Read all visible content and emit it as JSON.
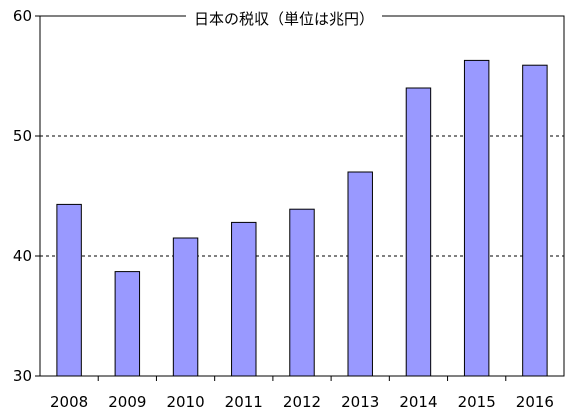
{
  "chart_data": {
    "type": "bar",
    "title": "日本の税収（単位は兆円）",
    "xlabel": "",
    "ylabel": "",
    "categories": [
      "2008",
      "2009",
      "2010",
      "2011",
      "2012",
      "2013",
      "2014",
      "2015",
      "2016"
    ],
    "values": [
      44.3,
      38.7,
      41.5,
      42.8,
      43.9,
      47.0,
      54.0,
      56.3,
      55.9
    ],
    "ylim": [
      30,
      60
    ],
    "yticks": [
      "30",
      "40",
      "50",
      "60"
    ],
    "grid": "horizontal dashed at 40 and 50",
    "legend": "none",
    "colors": {
      "bar_fill": "#9999ff",
      "bar_stroke": "#000000",
      "grid": "#000000",
      "axis": "#000000",
      "background": "#ffffff"
    }
  }
}
